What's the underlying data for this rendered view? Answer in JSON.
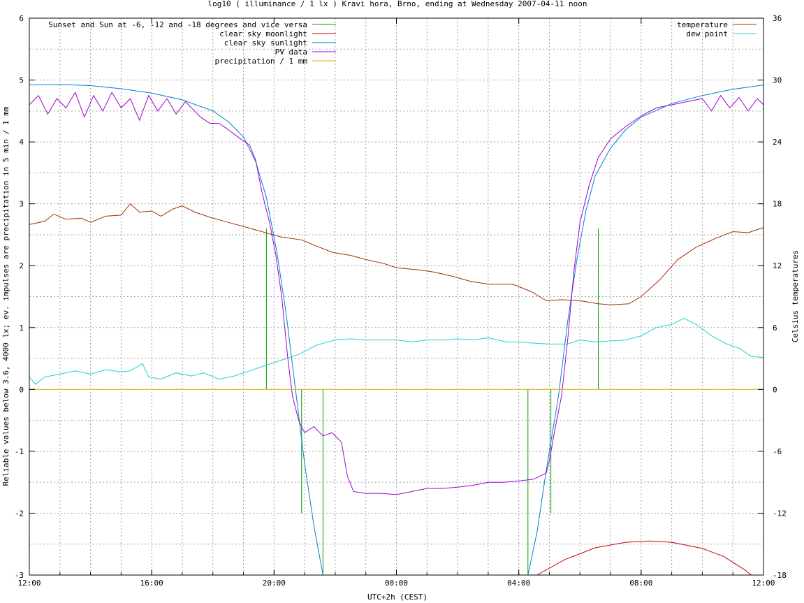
{
  "chart_data": {
    "type": "line",
    "title": "log10 ( illuminance / 1 lx ) Kravi hora, Brno, ending at Wednesday 2007-04-11 noon",
    "xlabel": "UTC+2h (CEST)",
    "ylabel": "Reliable values below 3.6, 4000 lx; ev. impulses are precipitation in 5 min / 1 mm",
    "y2label": "Celsius temperatures",
    "xlim": [
      0,
      24
    ],
    "ylim": [
      -3,
      6
    ],
    "y2lim": [
      -18,
      36
    ],
    "x_ticks": [
      {
        "h": 0,
        "label": "12:00"
      },
      {
        "h": 4,
        "label": "16:00"
      },
      {
        "h": 8,
        "label": "20:00"
      },
      {
        "h": 12,
        "label": "00:00"
      },
      {
        "h": 16,
        "label": "04:00"
      },
      {
        "h": 20,
        "label": "08:00"
      },
      {
        "h": 24,
        "label": "12:00"
      }
    ],
    "y_ticks": [
      -3,
      -2,
      -1,
      0,
      1,
      2,
      3,
      4,
      5,
      6
    ],
    "y2_ticks": [
      -18,
      -12,
      -6,
      0,
      6,
      12,
      18,
      24,
      30,
      36
    ],
    "grid": true,
    "legend_left": [
      {
        "name": "Sunset and Sun at -6, -12 and -18 degrees and vice versa",
        "color": "#00a000"
      },
      {
        "name": "clear sky moonlight",
        "color": "#c00000"
      },
      {
        "name": "clear sky sunlight",
        "color": "#0080d0"
      },
      {
        "name": "PV data",
        "color": "#a000d0"
      },
      {
        "name": "precipitation / 1 mm",
        "color": "#e0b000"
      }
    ],
    "legend_right": [
      {
        "name": "temperature",
        "color": "#a03000"
      },
      {
        "name": "dew point",
        "color": "#20d0d0"
      }
    ],
    "series": [
      {
        "key": "sunset_markers",
        "axis": "y",
        "type": "impulse",
        "color": "#00a000",
        "points": [
          [
            7.75,
            2.6
          ],
          [
            8.9,
            -2.0
          ],
          [
            9.6,
            -3.0
          ],
          [
            16.3,
            -3.0
          ],
          [
            17.05,
            -2.0
          ],
          [
            18.0,
            0.0
          ],
          [
            18.6,
            2.6
          ]
        ]
      },
      {
        "key": "moonlight",
        "axis": "y",
        "color": "#c00000",
        "points": [
          [
            16.6,
            -3.0
          ],
          [
            17.5,
            -2.75
          ],
          [
            18.5,
            -2.56
          ],
          [
            19.5,
            -2.47
          ],
          [
            20.3,
            -2.45
          ],
          [
            21.0,
            -2.47
          ],
          [
            22.0,
            -2.57
          ],
          [
            22.7,
            -2.7
          ],
          [
            23.4,
            -2.92
          ],
          [
            23.6,
            -3.0
          ]
        ]
      },
      {
        "key": "sunlight",
        "axis": "y",
        "color": "#0080d0",
        "points": [
          [
            0,
            4.92
          ],
          [
            1,
            4.93
          ],
          [
            2,
            4.91
          ],
          [
            3,
            4.86
          ],
          [
            4,
            4.79
          ],
          [
            5,
            4.68
          ],
          [
            6,
            4.5
          ],
          [
            6.5,
            4.33
          ],
          [
            7.0,
            4.08
          ],
          [
            7.4,
            3.68
          ],
          [
            7.75,
            3.1
          ],
          [
            8.1,
            2.2
          ],
          [
            8.4,
            1.2
          ],
          [
            8.7,
            0.0
          ],
          [
            9.0,
            -1.2
          ],
          [
            9.3,
            -2.2
          ],
          [
            9.6,
            -3.0
          ],
          [
            16.3,
            -3.0
          ],
          [
            16.6,
            -2.3
          ],
          [
            16.9,
            -1.3
          ],
          [
            17.3,
            -0.1
          ],
          [
            17.6,
            1.1
          ],
          [
            17.9,
            2.1
          ],
          [
            18.2,
            2.9
          ],
          [
            18.5,
            3.45
          ],
          [
            19.0,
            3.9
          ],
          [
            19.5,
            4.2
          ],
          [
            20.0,
            4.4
          ],
          [
            21.0,
            4.62
          ],
          [
            22.0,
            4.75
          ],
          [
            23.0,
            4.85
          ],
          [
            24.0,
            4.92
          ]
        ]
      },
      {
        "key": "pv",
        "axis": "y",
        "color": "#a000d0",
        "points": [
          [
            0,
            4.6
          ],
          [
            0.3,
            4.75
          ],
          [
            0.6,
            4.45
          ],
          [
            0.9,
            4.7
          ],
          [
            1.2,
            4.55
          ],
          [
            1.5,
            4.8
          ],
          [
            1.8,
            4.4
          ],
          [
            2.1,
            4.75
          ],
          [
            2.4,
            4.5
          ],
          [
            2.7,
            4.8
          ],
          [
            3.0,
            4.55
          ],
          [
            3.3,
            4.7
          ],
          [
            3.6,
            4.35
          ],
          [
            3.9,
            4.75
          ],
          [
            4.2,
            4.5
          ],
          [
            4.5,
            4.7
          ],
          [
            4.8,
            4.45
          ],
          [
            5.1,
            4.65
          ],
          [
            5.4,
            4.5
          ],
          [
            5.6,
            4.4
          ],
          [
            5.9,
            4.3
          ],
          [
            6.2,
            4.3
          ],
          [
            6.5,
            4.2
          ],
          [
            6.9,
            4.05
          ],
          [
            7.2,
            3.95
          ],
          [
            7.4,
            3.7
          ],
          [
            7.6,
            3.2
          ],
          [
            7.85,
            2.7
          ],
          [
            8.05,
            2.2
          ],
          [
            8.25,
            1.5
          ],
          [
            8.45,
            0.5
          ],
          [
            8.6,
            -0.1
          ],
          [
            8.8,
            -0.5
          ],
          [
            9.0,
            -0.7
          ],
          [
            9.3,
            -0.6
          ],
          [
            9.6,
            -0.75
          ],
          [
            9.9,
            -0.7
          ],
          [
            10.2,
            -0.85
          ],
          [
            10.4,
            -1.4
          ],
          [
            10.6,
            -1.65
          ],
          [
            11.0,
            -1.68
          ],
          [
            11.5,
            -1.68
          ],
          [
            12.0,
            -1.7
          ],
          [
            12.5,
            -1.65
          ],
          [
            13.0,
            -1.6
          ],
          [
            13.5,
            -1.6
          ],
          [
            14.0,
            -1.58
          ],
          [
            14.5,
            -1.55
          ],
          [
            15.0,
            -1.5
          ],
          [
            15.5,
            -1.5
          ],
          [
            16.0,
            -1.48
          ],
          [
            16.5,
            -1.45
          ],
          [
            16.9,
            -1.35
          ],
          [
            17.0,
            -1.15
          ],
          [
            17.2,
            -0.6
          ],
          [
            17.4,
            -0.1
          ],
          [
            17.6,
            0.8
          ],
          [
            17.8,
            1.9
          ],
          [
            18.0,
            2.7
          ],
          [
            18.3,
            3.3
          ],
          [
            18.6,
            3.75
          ],
          [
            19.0,
            4.05
          ],
          [
            19.5,
            4.25
          ],
          [
            20.0,
            4.42
          ],
          [
            20.5,
            4.55
          ],
          [
            21.0,
            4.6
          ],
          [
            21.5,
            4.65
          ],
          [
            22.0,
            4.7
          ],
          [
            22.3,
            4.5
          ],
          [
            22.6,
            4.75
          ],
          [
            22.9,
            4.55
          ],
          [
            23.2,
            4.72
          ],
          [
            23.5,
            4.5
          ],
          [
            23.8,
            4.7
          ],
          [
            24.0,
            4.6
          ]
        ]
      },
      {
        "key": "precipitation",
        "axis": "y",
        "color": "#e0b000",
        "points": [
          [
            0,
            0
          ],
          [
            24,
            0
          ]
        ]
      },
      {
        "key": "temperature",
        "axis": "y2",
        "color": "#a03000",
        "points": [
          [
            0,
            16.0
          ],
          [
            0.5,
            16.3
          ],
          [
            0.8,
            17.0
          ],
          [
            1.2,
            16.5
          ],
          [
            1.7,
            16.6
          ],
          [
            2.0,
            16.2
          ],
          [
            2.5,
            16.8
          ],
          [
            3.0,
            16.9
          ],
          [
            3.3,
            18.0
          ],
          [
            3.6,
            17.2
          ],
          [
            4.0,
            17.3
          ],
          [
            4.3,
            16.8
          ],
          [
            4.7,
            17.5
          ],
          [
            5.0,
            17.8
          ],
          [
            5.4,
            17.2
          ],
          [
            5.9,
            16.7
          ],
          [
            6.5,
            16.2
          ],
          [
            7.0,
            15.8
          ],
          [
            7.6,
            15.3
          ],
          [
            8.2,
            14.8
          ],
          [
            8.9,
            14.5
          ],
          [
            9.3,
            14.0
          ],
          [
            9.9,
            13.3
          ],
          [
            10.5,
            13.0
          ],
          [
            11.0,
            12.6
          ],
          [
            11.6,
            12.2
          ],
          [
            12.0,
            11.8
          ],
          [
            12.7,
            11.6
          ],
          [
            13.2,
            11.4
          ],
          [
            13.8,
            11.0
          ],
          [
            14.4,
            10.5
          ],
          [
            15.0,
            10.2
          ],
          [
            15.8,
            10.2
          ],
          [
            16.4,
            9.5
          ],
          [
            16.9,
            8.6
          ],
          [
            17.4,
            8.7
          ],
          [
            18.0,
            8.6
          ],
          [
            18.6,
            8.3
          ],
          [
            19.0,
            8.2
          ],
          [
            19.6,
            8.3
          ],
          [
            20.0,
            9.0
          ],
          [
            20.6,
            10.6
          ],
          [
            21.2,
            12.6
          ],
          [
            21.8,
            13.8
          ],
          [
            22.4,
            14.6
          ],
          [
            23.0,
            15.3
          ],
          [
            23.5,
            15.2
          ],
          [
            24.0,
            15.7
          ]
        ]
      },
      {
        "key": "dewpoint",
        "axis": "y2",
        "color": "#20d0d0",
        "points": [
          [
            0,
            1.2
          ],
          [
            0.2,
            0.5
          ],
          [
            0.5,
            1.2
          ],
          [
            1.0,
            1.5
          ],
          [
            1.5,
            1.8
          ],
          [
            2.0,
            1.5
          ],
          [
            2.5,
            1.9
          ],
          [
            3.0,
            1.7
          ],
          [
            3.3,
            1.8
          ],
          [
            3.7,
            2.5
          ],
          [
            3.9,
            1.2
          ],
          [
            4.3,
            1.0
          ],
          [
            4.8,
            1.6
          ],
          [
            5.3,
            1.3
          ],
          [
            5.7,
            1.6
          ],
          [
            6.2,
            1.0
          ],
          [
            6.7,
            1.3
          ],
          [
            7.2,
            1.8
          ],
          [
            7.8,
            2.4
          ],
          [
            8.4,
            3.0
          ],
          [
            8.8,
            3.4
          ],
          [
            9.4,
            4.3
          ],
          [
            10.0,
            4.8
          ],
          [
            10.5,
            4.9
          ],
          [
            11.0,
            4.8
          ],
          [
            11.5,
            4.8
          ],
          [
            12.0,
            4.8
          ],
          [
            12.5,
            4.6
          ],
          [
            13.0,
            4.8
          ],
          [
            13.5,
            4.8
          ],
          [
            14.0,
            4.9
          ],
          [
            14.5,
            4.8
          ],
          [
            15.0,
            5.0
          ],
          [
            15.6,
            4.6
          ],
          [
            16.0,
            4.6
          ],
          [
            16.4,
            4.5
          ],
          [
            17.0,
            4.4
          ],
          [
            17.6,
            4.4
          ],
          [
            18.0,
            4.8
          ],
          [
            18.5,
            4.6
          ],
          [
            19.0,
            4.7
          ],
          [
            19.5,
            4.8
          ],
          [
            20.0,
            5.2
          ],
          [
            20.5,
            6.0
          ],
          [
            21.0,
            6.3
          ],
          [
            21.4,
            6.9
          ],
          [
            21.8,
            6.3
          ],
          [
            22.3,
            5.2
          ],
          [
            22.8,
            4.4
          ],
          [
            23.2,
            4.0
          ],
          [
            23.6,
            3.2
          ],
          [
            24.0,
            3.1
          ]
        ]
      }
    ]
  }
}
